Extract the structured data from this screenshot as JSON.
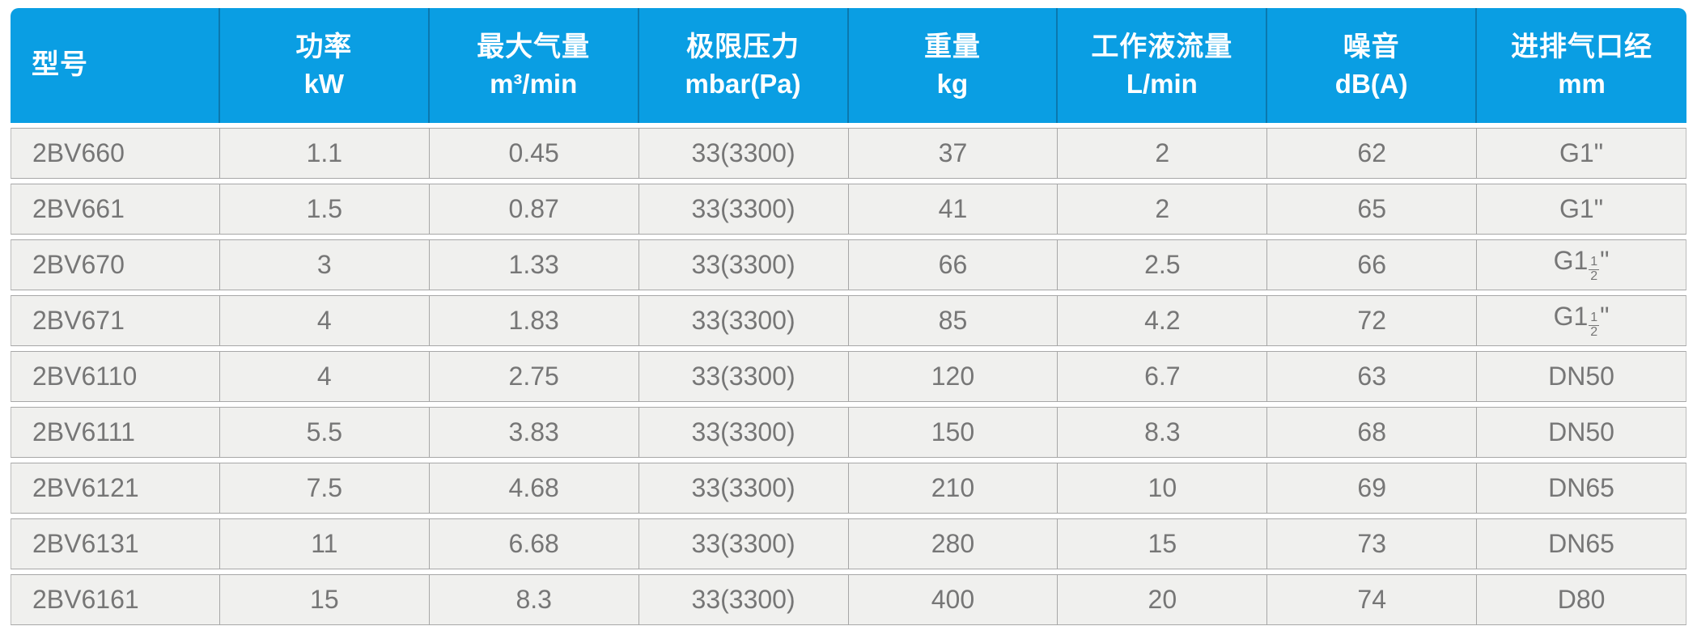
{
  "table": {
    "accent_color": "#0a9ee3",
    "row_background": "#f0f0ee",
    "grid_line_color": "#a7a7a7",
    "body_text_color": "#767676",
    "columns": [
      {
        "title": "型号",
        "unit": ""
      },
      {
        "title": "功率",
        "unit": "kW"
      },
      {
        "title": "最大气量",
        "unit": "m³/min"
      },
      {
        "title": "极限压力",
        "unit": "mbar(Pa)"
      },
      {
        "title": "重量",
        "unit": "kg"
      },
      {
        "title": "工作液流量",
        "unit": "L/min"
      },
      {
        "title": "噪音",
        "unit": "dB(A)"
      },
      {
        "title": "进排气口经",
        "unit": "mm"
      }
    ],
    "rows": [
      [
        "2BV660",
        "1.1",
        "0.45",
        "33(3300)",
        "37",
        "2",
        "62",
        "G1\""
      ],
      [
        "2BV661",
        "1.5",
        "0.87",
        "33(3300)",
        "41",
        "2",
        "65",
        "G1\""
      ],
      [
        "2BV670",
        "3",
        "1.33",
        "33(3300)",
        "66",
        "2.5",
        "66",
        "G1½\""
      ],
      [
        "2BV671",
        "4",
        "1.83",
        "33(3300)",
        "85",
        "4.2",
        "72",
        "G1½\""
      ],
      [
        "2BV6110",
        "4",
        "2.75",
        "33(3300)",
        "120",
        "6.7",
        "63",
        "DN50"
      ],
      [
        "2BV6111",
        "5.5",
        "3.83",
        "33(3300)",
        "150",
        "8.3",
        "68",
        "DN50"
      ],
      [
        "2BV6121",
        "7.5",
        "4.68",
        "33(3300)",
        "210",
        "10",
        "69",
        "DN65"
      ],
      [
        "2BV6131",
        "11",
        "6.68",
        "33(3300)",
        "280",
        "15",
        "73",
        "DN65"
      ],
      [
        "2BV6161",
        "15",
        "8.3",
        "33(3300)",
        "400",
        "20",
        "74",
        "D80"
      ]
    ]
  }
}
